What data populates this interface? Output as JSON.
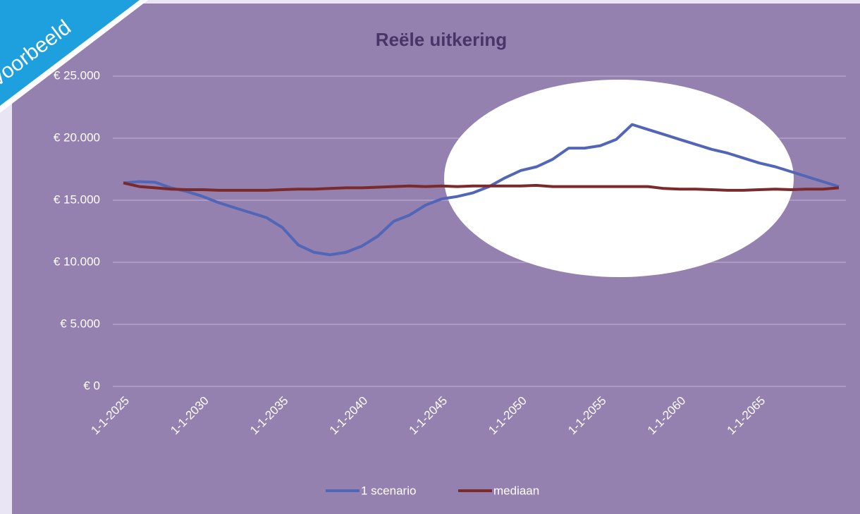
{
  "banner": "Voorbeeld",
  "chart_data": {
    "type": "line",
    "title": "Reële uitkering",
    "categories": [
      "1-1-2025",
      null,
      null,
      null,
      null,
      "1-1-2030",
      null,
      null,
      null,
      null,
      "1-1-2035",
      null,
      null,
      null,
      null,
      "1-1-2040",
      null,
      null,
      null,
      null,
      "1-1-2045",
      null,
      null,
      null,
      null,
      "1-1-2050",
      null,
      null,
      null,
      null,
      "1-1-2055",
      null,
      null,
      null,
      null,
      "1-1-2060",
      null,
      null,
      null,
      null,
      "1-1-2065",
      null,
      null,
      null,
      null,
      null
    ],
    "series": [
      {
        "name": "1 scenario",
        "color": "#5266b8",
        "values": [
          16400,
          16500,
          16450,
          16000,
          15700,
          15300,
          14800,
          14400,
          14000,
          13600,
          12800,
          11400,
          10800,
          10600,
          10800,
          11300,
          12100,
          13300,
          13800,
          14600,
          15100,
          15300,
          15600,
          16100,
          16800,
          17400,
          17700,
          18300,
          19200,
          19200,
          19400,
          19900,
          21100,
          20700,
          20300,
          19900,
          19500,
          19100,
          18800,
          18400,
          18000,
          17700,
          17300,
          16900,
          16500,
          16100
        ]
      },
      {
        "name": "mediaan",
        "color": "#7a2a2a",
        "values": [
          16400,
          16100,
          16000,
          15900,
          15850,
          15850,
          15800,
          15800,
          15800,
          15800,
          15850,
          15900,
          15900,
          15950,
          16000,
          16000,
          16050,
          16100,
          16150,
          16100,
          16150,
          16100,
          16150,
          16150,
          16150,
          16150,
          16200,
          16100,
          16100,
          16100,
          16100,
          16100,
          16100,
          16100,
          15950,
          15900,
          15900,
          15850,
          15800,
          15800,
          15850,
          15900,
          15850,
          15900,
          15900,
          16000
        ]
      }
    ],
    "ylim": [
      0,
      25000
    ],
    "yticks": [
      {
        "value": 0,
        "label": "€ 0"
      },
      {
        "value": 5000,
        "label": "€ 5.000"
      },
      {
        "value": 10000,
        "label": "€ 10.000"
      },
      {
        "value": 15000,
        "label": "€ 15.000"
      },
      {
        "value": 20000,
        "label": "€ 20.000"
      },
      {
        "value": 25000,
        "label": "€ 25.000"
      }
    ],
    "grid": true,
    "legend": "bottom"
  }
}
